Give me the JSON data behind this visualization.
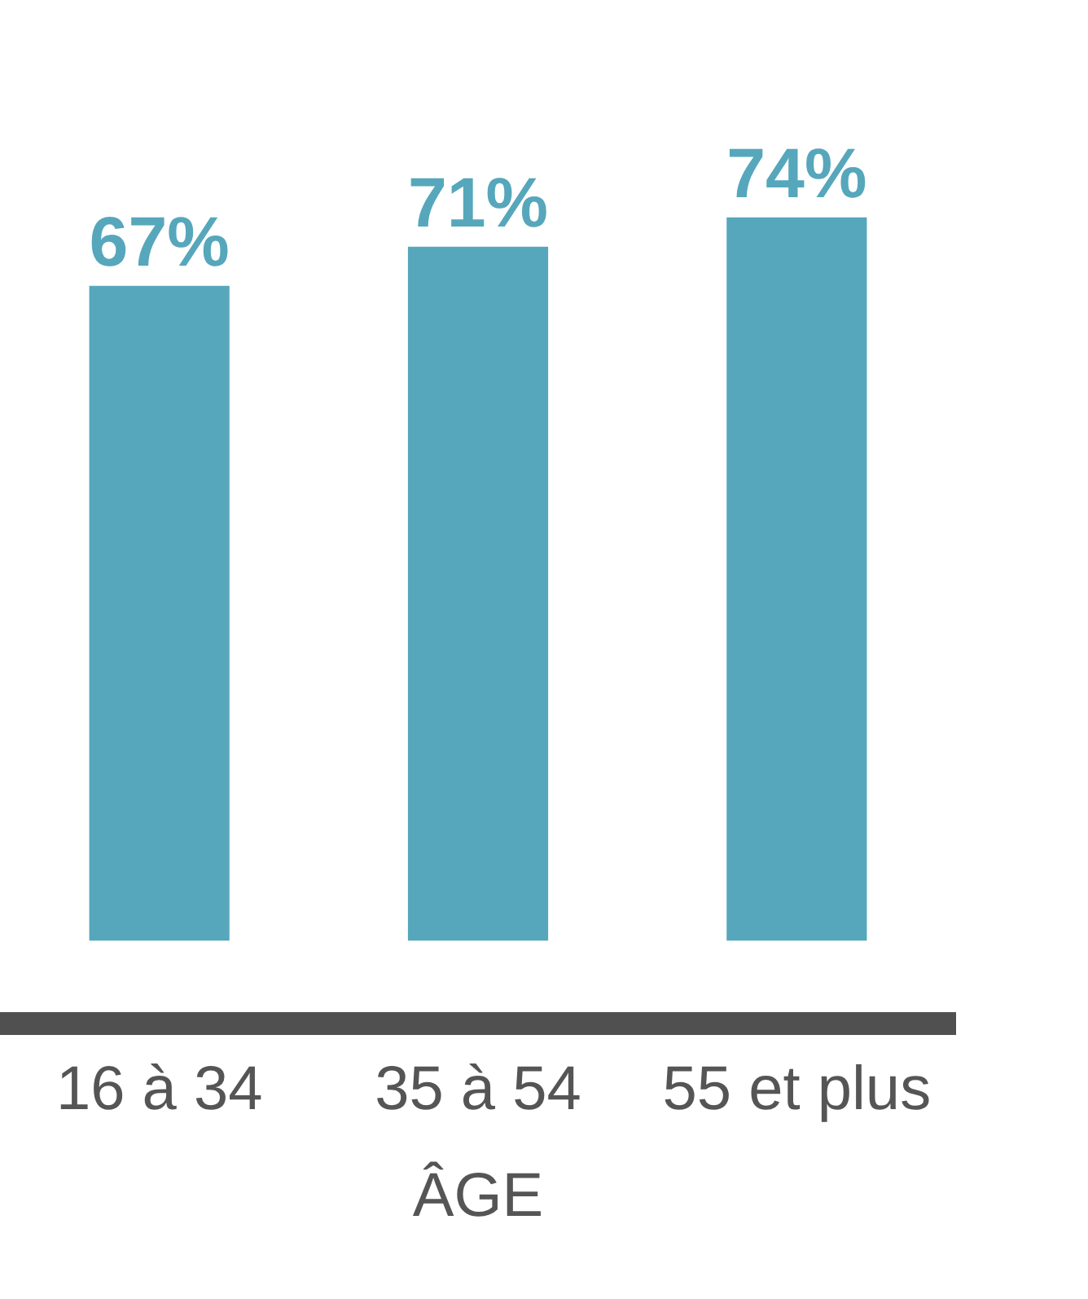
{
  "chart_data": {
    "type": "bar",
    "categories": [
      "16 à 34",
      "35 à 54",
      "55 et plus"
    ],
    "xlabel": "ÂGE",
    "values": [
      67,
      71,
      74
    ],
    "color": "#56a7bb",
    "data_labels": true,
    "value_labels": [
      "67%",
      "71%",
      "74%"
    ],
    "tick_labels": "x",
    "legend": false
  }
}
